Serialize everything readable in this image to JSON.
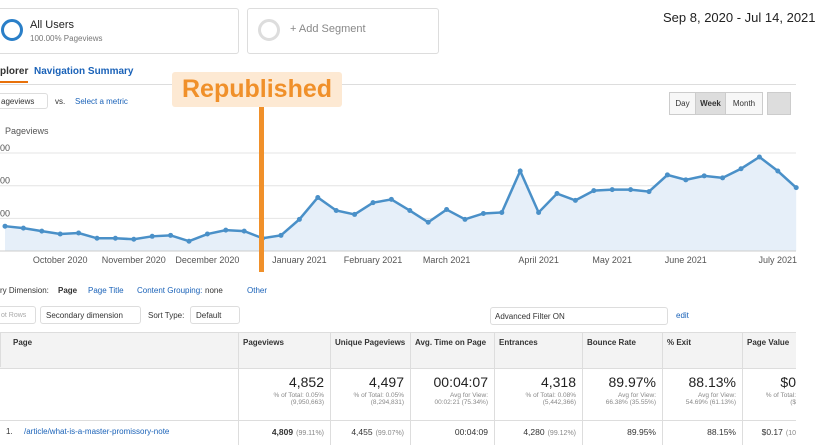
{
  "header": {
    "segment": {
      "title": "All Users",
      "subtitle": "100.00% Pageviews"
    },
    "add_segment": "+ Add Segment",
    "date_range": "Sep 8, 2020 - Jul 14, 2021"
  },
  "tabs": [
    "plorer",
    "Navigation Summary"
  ],
  "controls": {
    "metric": "ageviews",
    "vs": "vs.",
    "select": "Select a metric",
    "buttons": [
      "Day",
      "Week",
      "Month"
    ]
  },
  "annotation": "Republished",
  "chart_data": {
    "type": "line",
    "ylim": [
      0,
      340
    ],
    "yticks": [
      {
        "value": 100,
        "label": "00"
      },
      {
        "value": 200,
        "label": "00"
      },
      {
        "value": 300,
        "label": "00"
      }
    ],
    "grid": true,
    "categories": [
      null,
      null,
      null,
      "October 2020",
      null,
      null,
      null,
      "November 2020",
      null,
      null,
      null,
      "December 2020",
      null,
      null,
      null,
      null,
      "January 2021",
      null,
      null,
      null,
      "February 2021",
      null,
      null,
      null,
      "March 2021",
      null,
      null,
      null,
      null,
      "April 2021",
      null,
      null,
      null,
      "May 2021",
      null,
      null,
      null,
      "June 2021",
      null,
      null,
      null,
      null,
      "July 2021",
      null
    ],
    "series": [
      {
        "name": "Pageviews",
        "color": "#4a90c8",
        "values": [
          76,
          70,
          61,
          52,
          55,
          39,
          39,
          36,
          45,
          48,
          30,
          52,
          64,
          61,
          39,
          48,
          97,
          164,
          124,
          112,
          148,
          158,
          124,
          88,
          127,
          97,
          115,
          118,
          245,
          118,
          176,
          155,
          185,
          188,
          188,
          182,
          233,
          218,
          230,
          224,
          252,
          288,
          245,
          194
        ]
      }
    ]
  },
  "dimension": {
    "label": "ry Dimension:",
    "options": [
      "Page",
      "Page Title",
      "Content Grouping:",
      "none",
      "Other"
    ]
  },
  "toolbar": {
    "plot": "ot Rows",
    "secondary": "Secondary dimension",
    "sort_label": "Sort Type:",
    "sort": "Default",
    "filter": "Advanced Filter ON",
    "edit": "edit"
  },
  "table": {
    "columns": [
      "Page",
      "Pageviews",
      "Unique Pageviews",
      "Avg. Time on Page",
      "Entrances",
      "Bounce Rate",
      "% Exit",
      "Page Value"
    ],
    "totals": [
      [
        "4,852",
        "% of Total: 0.05%",
        "(9,950,663)"
      ],
      [
        "4,497",
        "% of Total: 0.05%",
        "(8,294,831)"
      ],
      [
        "00:04:07",
        "Avg for View:",
        "00:02:21 (75.34%)"
      ],
      [
        "4,318",
        "% of Total: 0.08%",
        "(5,442,366)"
      ],
      [
        "89.97%",
        "Avg for View:",
        "66.38% (35.55%)"
      ],
      [
        "88.13%",
        "Avg for View:",
        "54.69% (61.13%)"
      ],
      [
        "$0",
        "% of Total:",
        "($"
      ]
    ],
    "rows": [
      {
        "index": "1.",
        "page": "/article/what-is-a-master-promissory-note",
        "cells": [
          [
            "4,809",
            "(99.11%)"
          ],
          [
            "4,455",
            "(99.07%)"
          ],
          [
            "00:04:09"
          ],
          [
            "4,280",
            "(99.12%)"
          ],
          [
            "89.95%"
          ],
          [
            "88.15%"
          ],
          [
            "$0.17",
            "(10"
          ]
        ]
      }
    ]
  }
}
